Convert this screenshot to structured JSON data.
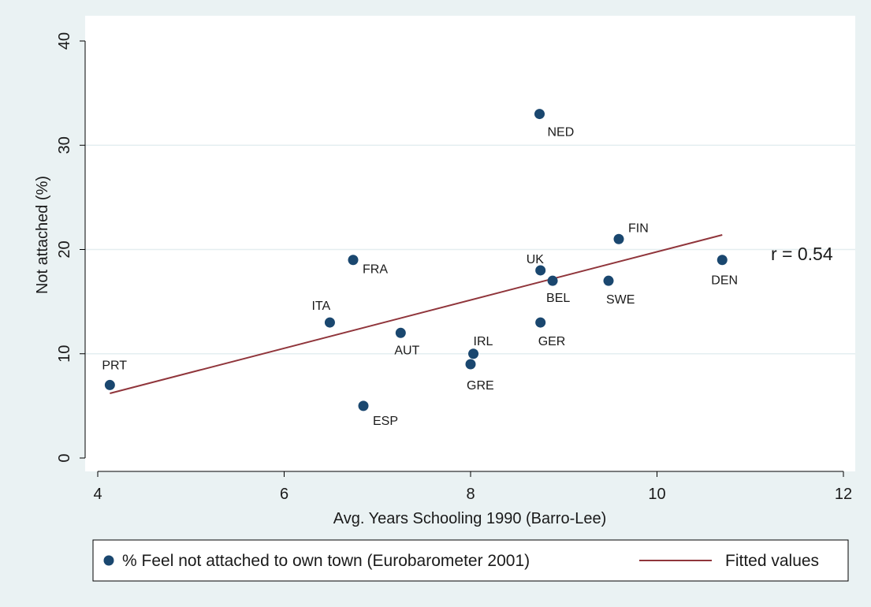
{
  "chart_data": {
    "type": "scatter",
    "xlabel": "Avg. Years Schooling 1990 (Barro-Lee)",
    "ylabel": "Not attached (%)",
    "xlim": [
      4,
      12
    ],
    "ylim": [
      0,
      40
    ],
    "xticks": [
      4,
      6,
      8,
      10,
      12
    ],
    "yticks": [
      0,
      10,
      20,
      30,
      40
    ],
    "grid": "horizontal",
    "annotation": "r = 0.54",
    "legend_position": "bottom",
    "series": [
      {
        "name": "% Feel not attached to own town (Eurobarometer 2001)",
        "kind": "scatter",
        "color": "#1a476f",
        "points": [
          {
            "label": "PRT",
            "x": 4.13,
            "y": 7
          },
          {
            "label": "ITA",
            "x": 6.49,
            "y": 13
          },
          {
            "label": "FRA",
            "x": 6.74,
            "y": 19
          },
          {
            "label": "ESP",
            "x": 6.85,
            "y": 5
          },
          {
            "label": "AUT",
            "x": 7.25,
            "y": 12
          },
          {
            "label": "GRE",
            "x": 8.0,
            "y": 9
          },
          {
            "label": "IRL",
            "x": 8.03,
            "y": 10
          },
          {
            "label": "NED",
            "x": 8.74,
            "y": 33
          },
          {
            "label": "UK",
            "x": 8.75,
            "y": 18
          },
          {
            "label": "GER",
            "x": 8.75,
            "y": 13
          },
          {
            "label": "BEL",
            "x": 8.88,
            "y": 17
          },
          {
            "label": "SWE",
            "x": 9.48,
            "y": 17
          },
          {
            "label": "FIN",
            "x": 9.59,
            "y": 21
          },
          {
            "label": "DEN",
            "x": 10.7,
            "y": 19
          }
        ]
      },
      {
        "name": "Fitted values",
        "kind": "line",
        "color": "#90353b",
        "x": [
          4.13,
          10.7
        ],
        "y": [
          6.2,
          21.4
        ]
      }
    ]
  }
}
